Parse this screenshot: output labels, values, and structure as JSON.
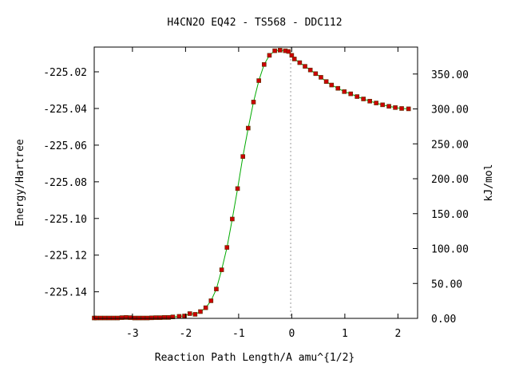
{
  "chart_data": {
    "type": "line",
    "title": "H4CN2O   EQ42 - TS568 - DDC112",
    "xlabel": "Reaction Path Length/A amu^{1/2}",
    "ylabel": "Energy/Hartree",
    "y2label": "kJ/mol",
    "xlim": [
      -3.72,
      2.37
    ],
    "ylim": [
      -225.1545,
      -225.0065
    ],
    "y2lim": [
      0.0,
      388.6
    ],
    "x_ticks": [
      -3,
      -2,
      -1,
      0,
      1,
      2
    ],
    "x_tick_labels": [
      "-3",
      "-2",
      "-1",
      "0",
      "1",
      "2"
    ],
    "y_ticks": [
      -225.02,
      -225.04,
      -225.06,
      -225.08,
      -225.1,
      -225.12,
      -225.14
    ],
    "y_tick_labels": [
      "-225.02",
      "-225.04",
      "-225.06",
      "-225.08",
      "-225.10",
      "-225.12",
      "-225.14"
    ],
    "y2_ticks": [
      350,
      300,
      250,
      200,
      150,
      100,
      50,
      0
    ],
    "y2_tick_labels": [
      "350.00",
      "300.00",
      "250.00",
      "200.00",
      "150.00",
      "100.00",
      "50.00",
      "0.00"
    ],
    "ts_marker_x": -0.02,
    "colors": {
      "line": "#00aa00",
      "marker": "#cc0000",
      "ts_line": "#999999"
    },
    "series": [
      {
        "x": [
          -3.72,
          -3.68,
          -3.6,
          -3.52,
          -3.44,
          -3.36,
          -3.28,
          -3.2,
          -3.12,
          -3.04,
          -2.96,
          -2.88,
          -2.8,
          -2.72,
          -2.64,
          -2.56,
          -2.48,
          -2.4,
          -2.32,
          -2.24,
          -2.12,
          -2.02,
          -1.92,
          -1.82,
          -1.72,
          -1.62,
          -1.52,
          -1.42,
          -1.32,
          -1.22,
          -1.12,
          -1.02,
          -0.92,
          -0.82,
          -0.72,
          -0.62,
          -0.52,
          -0.42,
          -0.32,
          -0.22,
          -0.12,
          -0.06,
          0.0,
          0.05,
          0.15,
          0.25,
          0.35,
          0.45,
          0.55,
          0.65,
          0.75,
          0.87,
          0.99,
          1.11,
          1.23,
          1.35,
          1.47,
          1.59,
          1.71,
          1.83,
          1.95,
          2.07,
          2.2
        ],
        "y": [
          -225.1543,
          -225.1543,
          -225.1543,
          -225.1543,
          -225.1543,
          -225.1543,
          -225.1543,
          -225.1541,
          -225.154,
          -225.1541,
          -225.1543,
          -225.1543,
          -225.1543,
          -225.1543,
          -225.1542,
          -225.1541,
          -225.1541,
          -225.154,
          -225.154,
          -225.1537,
          -225.1534,
          -225.1532,
          -225.1519,
          -225.1523,
          -225.1508,
          -225.1487,
          -225.1449,
          -225.1385,
          -225.128,
          -225.1158,
          -225.1003,
          -225.0837,
          -225.0662,
          -225.0507,
          -225.0365,
          -225.0248,
          -225.016,
          -225.011,
          -225.0085,
          -225.0082,
          -225.0085,
          -225.0089,
          -225.011,
          -225.013,
          -225.015,
          -225.017,
          -225.019,
          -225.021,
          -225.023,
          -225.0253,
          -225.0272,
          -225.029,
          -225.0308,
          -225.032,
          -225.0335,
          -225.0348,
          -225.036,
          -225.037,
          -225.038,
          -225.0388,
          -225.0395,
          -225.04,
          -225.0402
        ]
      }
    ]
  }
}
